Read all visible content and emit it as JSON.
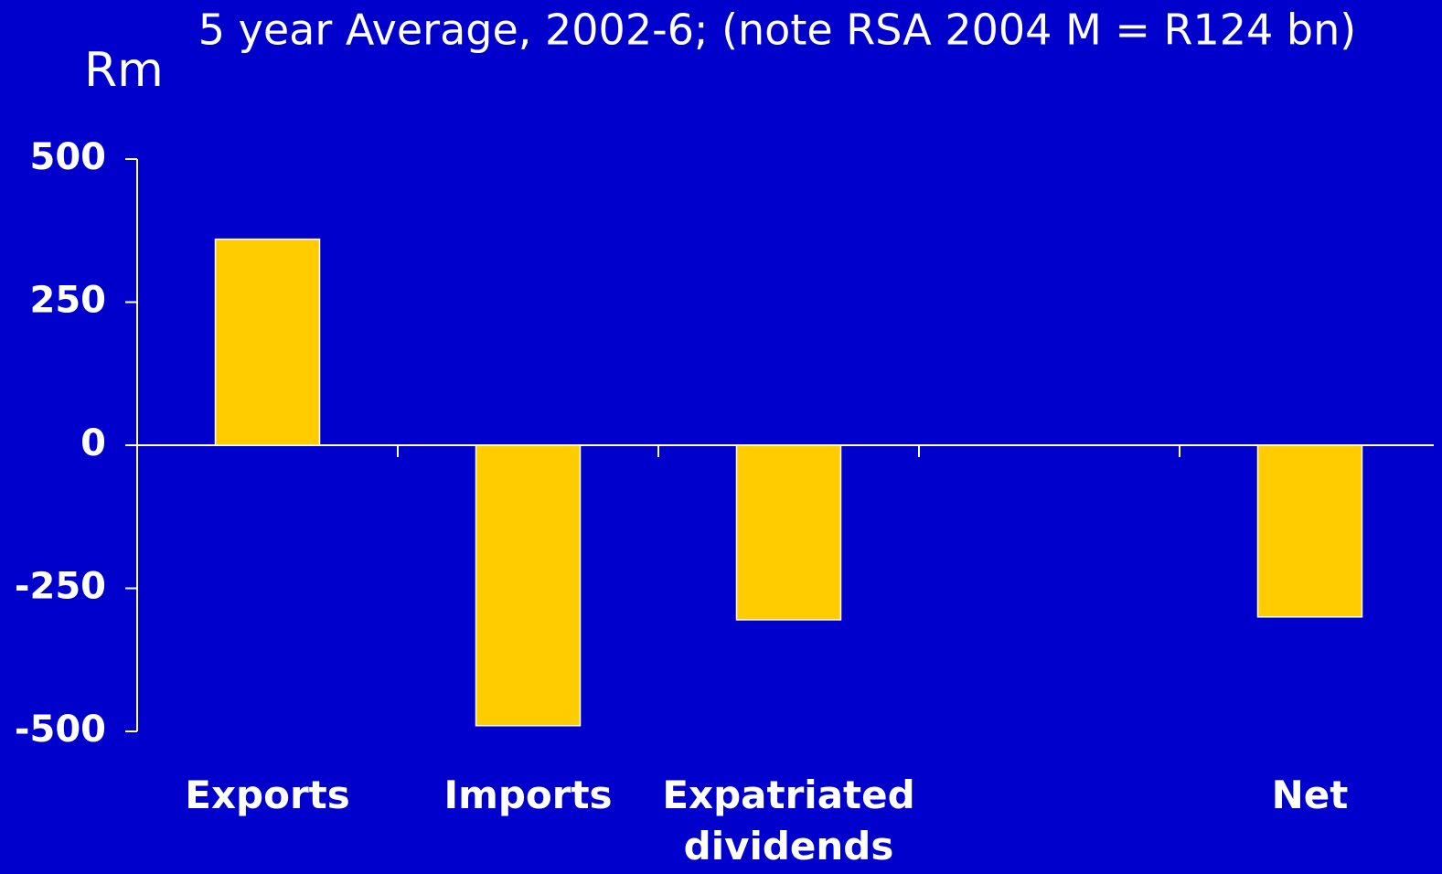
{
  "chart_data": {
    "type": "bar",
    "title": "5 year Average, 2002-6; (note RSA 2004 M = R124 bn)",
    "y_label": "Rm",
    "categories": [
      "Exports",
      "Imports",
      "Expatriated dividends",
      null,
      "Net"
    ],
    "values": [
      360,
      -490,
      -305,
      null,
      -300
    ],
    "color": "#ffcc00",
    "ylim": [
      -500,
      500
    ],
    "yticks": [
      -500,
      -250,
      0,
      250,
      500
    ],
    "grid": false
  }
}
